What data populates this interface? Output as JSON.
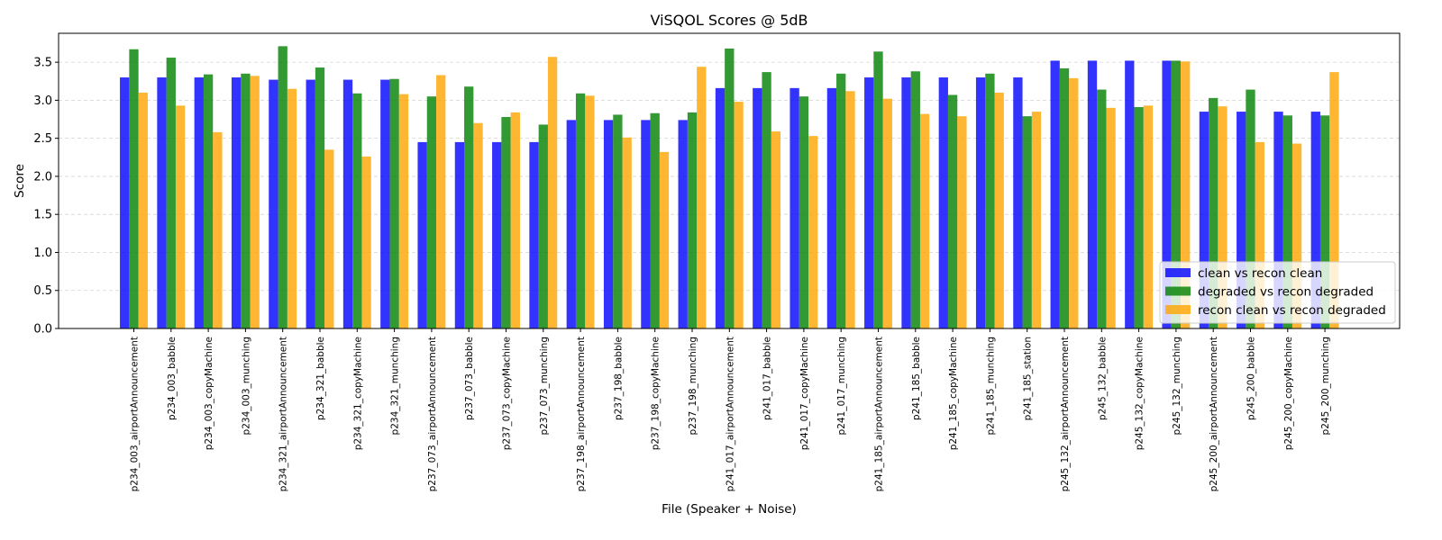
{
  "chart_data": {
    "type": "bar",
    "title": "ViSQOL Scores @ 5dB",
    "xlabel": "File (Speaker + Noise)",
    "ylabel": "Score",
    "ylim": [
      0,
      3.88
    ],
    "yticks": [
      "0.0",
      "0.5",
      "1.0",
      "1.5",
      "2.0",
      "2.5",
      "3.0",
      "3.5"
    ],
    "ytick_values": [
      0,
      0.5,
      1.0,
      1.5,
      2.0,
      2.5,
      3.0,
      3.5
    ],
    "grid": "y dashed",
    "legend_position": "lower-right",
    "categories": [
      "p234_003_airportAnnouncement",
      "p234_003_babble",
      "p234_003_copyMachine",
      "p234_003_munching",
      "p234_321_airportAnnouncement",
      "p234_321_babble",
      "p234_321_copyMachine",
      "p234_321_munching",
      "p237_073_airportAnnouncement",
      "p237_073_babble",
      "p237_073_copyMachine",
      "p237_073_munching",
      "p237_198_airportAnnouncement",
      "p237_198_babble",
      "p237_198_copyMachine",
      "p237_198_munching",
      "p241_017_airportAnnouncement",
      "p241_017_babble",
      "p241_017_copyMachine",
      "p241_017_munching",
      "p241_185_airportAnnouncement",
      "p241_185_babble",
      "p241_185_copyMachine",
      "p241_185_munching",
      "p241_185_station",
      "p245_132_airportAnnouncement",
      "p245_132_babble",
      "p245_132_copyMachine",
      "p245_132_munching",
      "p245_200_airportAnnouncement",
      "p245_200_babble",
      "p245_200_copyMachine",
      "p245_200_munching"
    ],
    "series": [
      {
        "name": "clean vs recon clean",
        "color": "#0000ff",
        "values": [
          3.3,
          3.3,
          3.3,
          3.3,
          3.27,
          3.27,
          3.27,
          3.27,
          2.45,
          2.45,
          2.45,
          2.45,
          2.74,
          2.74,
          2.74,
          2.74,
          3.16,
          3.16,
          3.16,
          3.16,
          3.3,
          3.3,
          3.3,
          3.3,
          3.3,
          3.52,
          3.52,
          3.52,
          3.52,
          2.85,
          2.85,
          2.85,
          2.85
        ]
      },
      {
        "name": "degraded vs recon degraded",
        "color": "#008000",
        "values": [
          3.67,
          3.56,
          3.34,
          3.35,
          3.71,
          3.43,
          3.09,
          3.28,
          3.05,
          3.18,
          2.78,
          2.68,
          3.09,
          2.81,
          2.83,
          2.84,
          3.68,
          3.37,
          3.05,
          3.35,
          3.64,
          3.38,
          3.07,
          3.35,
          2.79,
          3.42,
          3.14,
          2.91,
          3.52,
          3.03,
          3.14,
          2.8,
          2.8
        ]
      },
      {
        "name": "recon clean vs recon degraded",
        "color": "#ffa500",
        "values": [
          3.1,
          2.93,
          2.58,
          3.32,
          3.15,
          2.35,
          2.26,
          3.08,
          3.33,
          2.7,
          2.84,
          3.57,
          3.06,
          2.51,
          2.32,
          3.44,
          2.98,
          2.59,
          2.53,
          3.12,
          3.02,
          2.82,
          2.79,
          3.1,
          2.85,
          3.29,
          2.9,
          2.93,
          3.51,
          2.92,
          2.45,
          2.43,
          3.37
        ]
      }
    ]
  }
}
